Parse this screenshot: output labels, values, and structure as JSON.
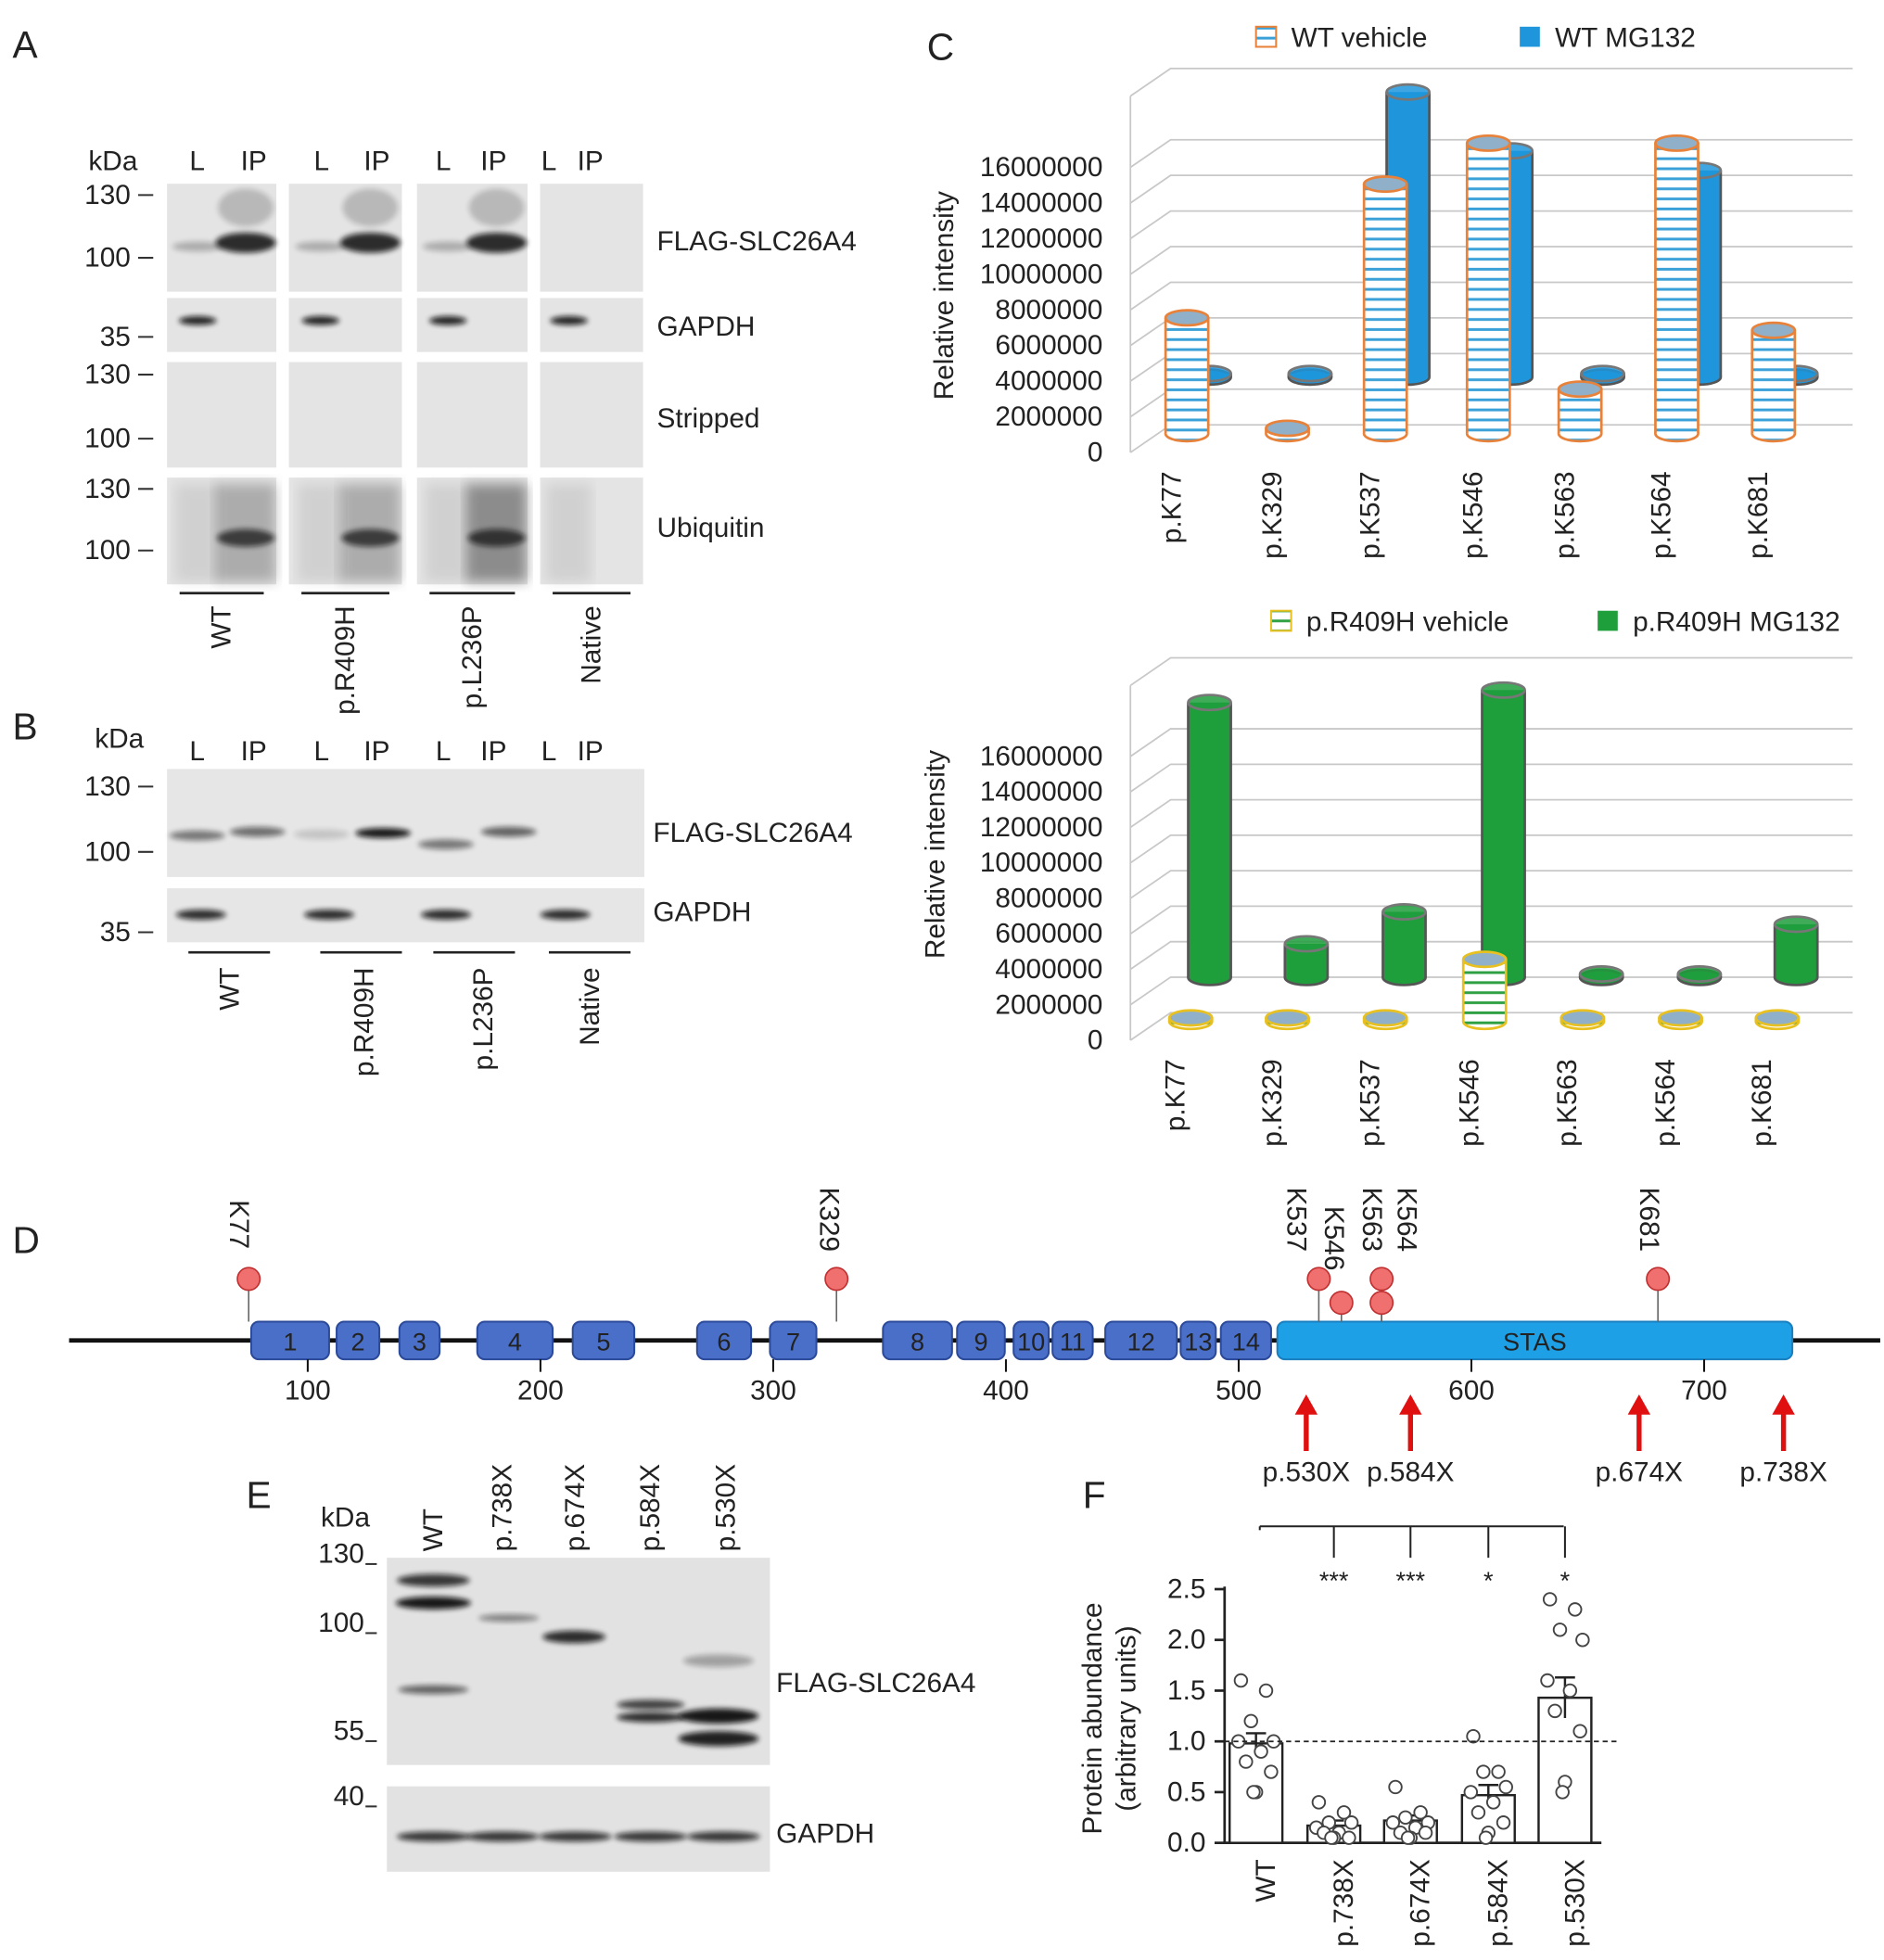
{
  "panel_labels": {
    "a": "A",
    "b": "B",
    "c": "C",
    "d": "D",
    "e": "E",
    "f": "F"
  },
  "panel_a": {
    "kda": "kDa",
    "lanes": [
      "L",
      "IP"
    ],
    "samples": [
      "WT",
      "p.R409H",
      "p.L236P",
      "Native"
    ],
    "blots": [
      {
        "label": "FLAG-SLC26A4",
        "markers": [
          130,
          100
        ]
      },
      {
        "label": "GAPDH",
        "markers": [
          35
        ]
      },
      {
        "label": "Stripped",
        "markers": [
          130,
          100
        ]
      },
      {
        "label": "Ubiquitin",
        "markers": [
          130,
          100
        ]
      }
    ]
  },
  "panel_b": {
    "kda": "kDa",
    "lanes": [
      "L",
      "IP"
    ],
    "samples": [
      "WT",
      "p.R409H",
      "p.L236P",
      "Native"
    ],
    "blots": [
      {
        "label": "FLAG-SLC26A4",
        "markers": [
          130,
          100
        ]
      },
      {
        "label": "GAPDH",
        "markers": [
          35
        ]
      }
    ]
  },
  "panel_d": {
    "sites": [
      "K77",
      "K329",
      "K537",
      "K546",
      "K563",
      "K564",
      "K681"
    ],
    "domains": [
      "1",
      "2",
      "3",
      "4",
      "5",
      "6",
      "7",
      "8",
      "9",
      "10",
      "11",
      "12",
      "13",
      "14",
      "STAS"
    ],
    "xticks": [
      100,
      200,
      300,
      400,
      500,
      600,
      700
    ],
    "truncations": [
      "p.530X",
      "p.584X",
      "p.674X",
      "p.738X"
    ]
  },
  "panel_e": {
    "kda": "kDa",
    "samples": [
      "WT",
      "p.738X",
      "p.674X",
      "p.584X",
      "p.530X"
    ],
    "markers": [
      130,
      100,
      55,
      40
    ],
    "blots": [
      "FLAG-SLC26A4",
      "GAPDH"
    ]
  },
  "chart_data": [
    {
      "type": "bar3d",
      "ylabel": "Relative intensity",
      "categories": [
        "p.K77",
        "p.K329",
        "p.K537",
        "p.K546",
        "p.K563",
        "p.K564",
        "p.K681"
      ],
      "series": [
        {
          "name": "WT vehicle",
          "color": "#ffffff",
          "edge": "#e8823a",
          "stripe": "#3aa0d8",
          "values": [
            6500000,
            300000,
            14000000,
            16300000,
            2500000,
            16300000,
            5800000
          ]
        },
        {
          "name": "WT MG132",
          "color": "#1f96dc",
          "values": [
            200000,
            200000,
            16000000,
            12700000,
            200000,
            11600000,
            200000
          ]
        }
      ],
      "ylim": [
        0,
        20000000
      ],
      "yticks": [
        0,
        2000000,
        4000000,
        6000000,
        8000000,
        10000000,
        12000000,
        14000000,
        16000000
      ]
    },
    {
      "type": "bar3d",
      "ylabel": "Relative intensity",
      "categories": [
        "p.K77",
        "p.K329",
        "p.K537",
        "p.K546",
        "p.K563",
        "p.K564",
        "p.K681"
      ],
      "series": [
        {
          "name": "p.R409H vehicle",
          "color": "#ffffff",
          "edge": "#e8c020",
          "stripe": "#2ea043",
          "values": [
            200000,
            200000,
            200000,
            3500000,
            200000,
            200000,
            200000
          ]
        },
        {
          "name": "p.R409H MG132",
          "color": "#1f9e3c",
          "values": [
            15500000,
            1900000,
            3700000,
            16200000,
            200000,
            200000,
            3000000
          ]
        }
      ],
      "ylim": [
        0,
        20000000
      ],
      "yticks": [
        0,
        2000000,
        4000000,
        6000000,
        8000000,
        10000000,
        12000000,
        14000000,
        16000000
      ]
    },
    {
      "type": "bar_scatter",
      "ylabel": [
        "Protein abundance",
        "(arbitrary units)"
      ],
      "categories": [
        "WT",
        "p.738X",
        "p.674X",
        "p.584X",
        "p.530X"
      ],
      "values": [
        0.98,
        0.17,
        0.22,
        0.47,
        1.43
      ],
      "errors": [
        0.1,
        0.05,
        0.05,
        0.1,
        0.2
      ],
      "points": [
        [
          1.6,
          1.5,
          1.2,
          1.0,
          1.0,
          0.9,
          0.8,
          0.7,
          0.5,
          0.5
        ],
        [
          0.4,
          0.3,
          0.2,
          0.2,
          0.15,
          0.1,
          0.1,
          0.05,
          0.05,
          0.05
        ],
        [
          0.55,
          0.3,
          0.25,
          0.2,
          0.2,
          0.15,
          0.1,
          0.1,
          0.05,
          0.05
        ],
        [
          1.05,
          0.7,
          0.7,
          0.55,
          0.5,
          0.4,
          0.3,
          0.2,
          0.1,
          0.05
        ],
        [
          2.4,
          2.3,
          2.1,
          2.0,
          1.6,
          1.5,
          1.3,
          1.1,
          0.6,
          0.5
        ]
      ],
      "significance": [
        "***",
        "***",
        "*",
        "*"
      ],
      "hline": 1,
      "color": "#ffffff",
      "ylim": [
        0,
        2.5
      ],
      "yticks": [
        {
          "value": 0,
          "label": "0.0"
        },
        0.5,
        {
          "value": 1,
          "label": "1.0"
        },
        1.5,
        {
          "value": 2,
          "label": "2.0"
        },
        2.5
      ]
    }
  ]
}
